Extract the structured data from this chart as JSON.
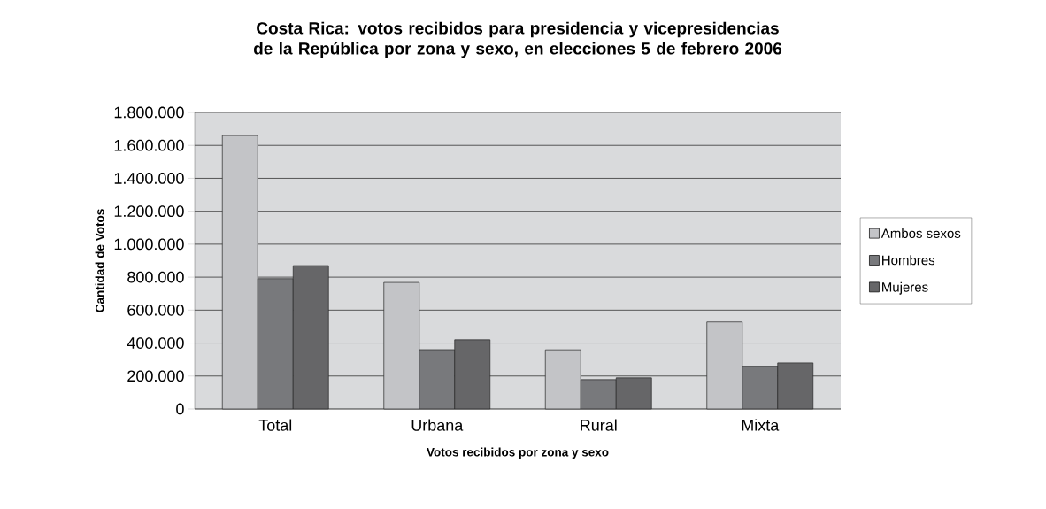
{
  "chart_data": {
    "type": "bar",
    "title": "Costa Rica: votos recibidos para presidencia y vicepresidencias de la República por zona y sexo, en elecciones 5 de febrero 2006",
    "xlabel": "Votos recibidos por zona y sexo",
    "ylabel": "Cantidad de Votos",
    "categories": [
      "Total",
      "Urbana",
      "Rural",
      "Mixta"
    ],
    "series": [
      {
        "name": "Ambos sexos",
        "color": "#c3c4c7",
        "values": [
          1660000,
          768000,
          359000,
          528000
        ]
      },
      {
        "name": "Hombres",
        "color": "#78797c",
        "values": [
          791000,
          360000,
          178000,
          258000
        ]
      },
      {
        "name": "Mujeres",
        "color": "#666668",
        "values": [
          870000,
          420000,
          189000,
          280000
        ]
      }
    ],
    "ylim": [
      0,
      1800000
    ],
    "yticks": [
      0,
      {
        "value": 200000,
        "label": "200.000"
      },
      {
        "value": 400000,
        "label": "400.000"
      },
      {
        "value": 600000,
        "label": "600.000"
      },
      {
        "value": 800000,
        "label": "800.000"
      },
      {
        "value": 1000000,
        "label": "1.000.000"
      },
      {
        "value": 1200000,
        "label": "1.200.000"
      },
      {
        "value": 1400000,
        "label": "1.400.000"
      },
      {
        "value": 1600000,
        "label": "1.600.000"
      },
      {
        "value": 1800000,
        "label": "1.800.000"
      }
    ],
    "grid": "y",
    "legend": "right"
  }
}
